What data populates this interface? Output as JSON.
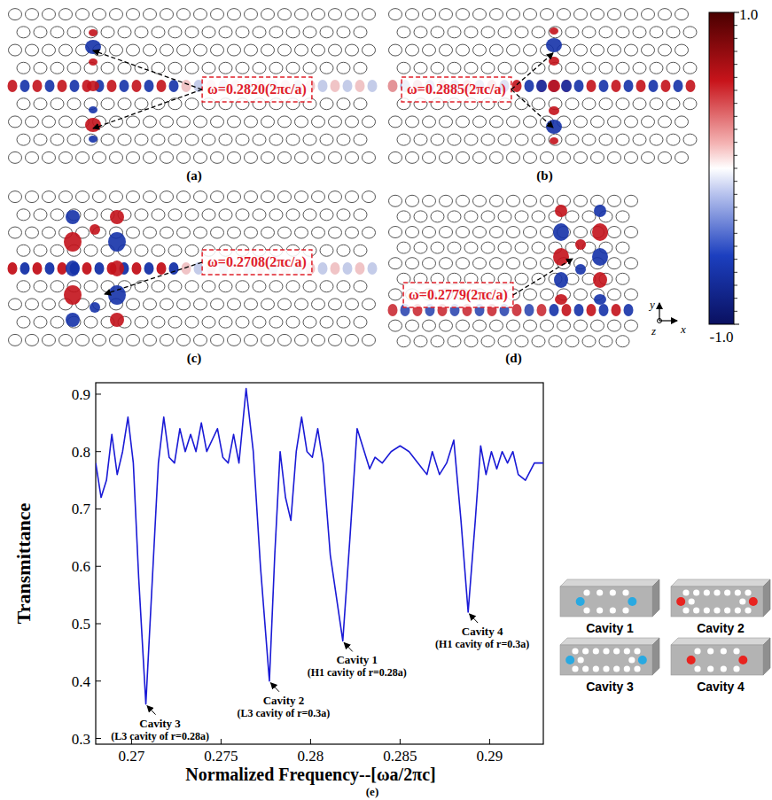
{
  "panels": [
    {
      "label": "(a)",
      "annotation": "ω=0.2820(2πc/a)"
    },
    {
      "label": "(b)",
      "annotation": "ω=0.2885(2πc/a)"
    },
    {
      "label": "(c)",
      "annotation": "ω=0.2708(2πc/a)"
    },
    {
      "label": "(d)",
      "annotation": "ω=0.2779(2πc/a)"
    }
  ],
  "colorbar": {
    "range": [
      -1,
      1
    ],
    "ticks": [
      {
        "value": 1,
        "label": "1.0"
      },
      {
        "value": -1,
        "label": "-1.0"
      }
    ]
  },
  "axes_indicator": {
    "x": "x",
    "y": "y",
    "z": "z"
  },
  "chart_data": {
    "type": "line",
    "panel_label": "(e)",
    "x_label": "Normalized Frequency--[ωa/2πc]",
    "y_label": "Transmittance",
    "color": "#1a1ad6",
    "x": [
      0.268,
      0.2683,
      0.2686,
      0.2689,
      0.2692,
      0.2695,
      0.2698,
      0.2701,
      0.2704,
      0.2708,
      0.2712,
      0.2715,
      0.2718,
      0.2721,
      0.2724,
      0.2727,
      0.273,
      0.2733,
      0.2736,
      0.2739,
      0.2742,
      0.2745,
      0.2748,
      0.2751,
      0.2754,
      0.2757,
      0.276,
      0.2764,
      0.2768,
      0.2772,
      0.2777,
      0.278,
      0.2783,
      0.2786,
      0.2789,
      0.2792,
      0.2795,
      0.2798,
      0.2801,
      0.2804,
      0.2807,
      0.2811,
      0.2818,
      0.2822,
      0.2826,
      0.283,
      0.2833,
      0.2836,
      0.284,
      0.2845,
      0.285,
      0.2855,
      0.286,
      0.2865,
      0.2868,
      0.2872,
      0.2876,
      0.288,
      0.2884,
      0.2888,
      0.2892,
      0.2895,
      0.2898,
      0.2901,
      0.2904,
      0.2907,
      0.291,
      0.2913,
      0.2916,
      0.292,
      0.2925,
      0.293
    ],
    "values": [
      0.78,
      0.72,
      0.75,
      0.83,
      0.76,
      0.8,
      0.86,
      0.78,
      0.58,
      0.36,
      0.6,
      0.78,
      0.86,
      0.79,
      0.78,
      0.84,
      0.8,
      0.83,
      0.8,
      0.85,
      0.8,
      0.82,
      0.84,
      0.79,
      0.78,
      0.83,
      0.78,
      0.91,
      0.8,
      0.6,
      0.4,
      0.62,
      0.8,
      0.72,
      0.68,
      0.8,
      0.86,
      0.8,
      0.79,
      0.84,
      0.78,
      0.62,
      0.47,
      0.65,
      0.84,
      0.8,
      0.77,
      0.79,
      0.78,
      0.8,
      0.81,
      0.8,
      0.78,
      0.76,
      0.8,
      0.76,
      0.78,
      0.82,
      0.68,
      0.52,
      0.68,
      0.81,
      0.76,
      0.8,
      0.77,
      0.8,
      0.78,
      0.8,
      0.76,
      0.75,
      0.78,
      0.78
    ],
    "xlim": [
      0.268,
      0.293
    ],
    "ylim": [
      0.29,
      0.92
    ],
    "xticks": [
      0.27,
      0.275,
      0.28,
      0.285,
      0.29
    ],
    "yticks": [
      0.3,
      0.4,
      0.5,
      0.6,
      0.7,
      0.8,
      0.9
    ],
    "grid": false,
    "annotations": [
      {
        "text": "Cavity 3",
        "detail": "(L3 cavity of r=0.28a)",
        "x": 0.2708,
        "y": 0.36
      },
      {
        "text": "Cavity 2",
        "detail": "(L3 cavity of r=0.3a)",
        "x": 0.2777,
        "y": 0.4
      },
      {
        "text": "Cavity 1",
        "detail": "(H1 cavity of r=0.28a)",
        "x": 0.2818,
        "y": 0.47
      },
      {
        "text": "Cavity 4",
        "detail": "(H1 cavity of r=0.3a)",
        "x": 0.2888,
        "y": 0.52
      }
    ]
  },
  "cavities": [
    {
      "label": "Cavity 1",
      "color": "#29a9e1"
    },
    {
      "label": "Cavity 2",
      "color": "#e8231f"
    },
    {
      "label": "Cavity 3",
      "color": "#29a9e1"
    },
    {
      "label": "Cavity 4",
      "color": "#e8231f"
    }
  ]
}
